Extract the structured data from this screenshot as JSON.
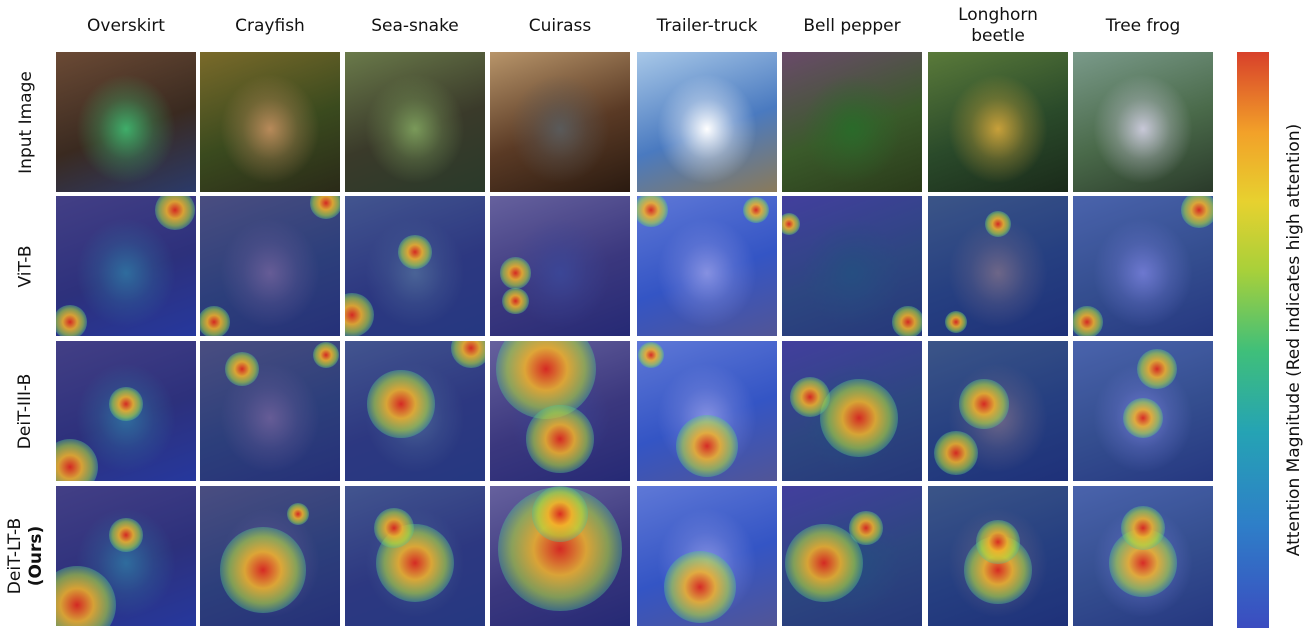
{
  "columns": [
    {
      "label": "Overskirt",
      "scene": {
        "bg": [
          "#3a2a20",
          "#6b4a35",
          "#2b3a6a"
        ],
        "subject": "#3fae6a"
      }
    },
    {
      "label": "Crayfish",
      "scene": {
        "bg": [
          "#3a4a1e",
          "#7a6a2a",
          "#2a2a18"
        ],
        "subject": "#b88a5a"
      }
    },
    {
      "label": "Sea-snake",
      "scene": {
        "bg": [
          "#3a3a2a",
          "#6a7a4a",
          "#2a3a2a"
        ],
        "subject": "#7a9a5a"
      }
    },
    {
      "label": "Cuirass",
      "scene": {
        "bg": [
          "#5a3a25",
          "#b8956a",
          "#2a1a10"
        ],
        "subject": "#5a5a5a"
      }
    },
    {
      "label": "Trailer-truck",
      "scene": {
        "bg": [
          "#4a7ac0",
          "#a8c8e8",
          "#8a7a5a"
        ],
        "subject": "#ffffff"
      }
    },
    {
      "label": "Bell pepper",
      "scene": {
        "bg": [
          "#3a5a2a",
          "#6a4a6a",
          "#2a3a1a"
        ],
        "subject": "#2a6a2a"
      }
    },
    {
      "label": "Longhorn\nbeetle",
      "scene": {
        "bg": [
          "#2a4a2a",
          "#5a7a3a",
          "#1a2a1a"
        ],
        "subject": "#c8a03a"
      }
    },
    {
      "label": "Tree frog",
      "scene": {
        "bg": [
          "#4a6a4a",
          "#7a9a8a",
          "#2a3a2a"
        ],
        "subject": "#c8c8d8"
      }
    }
  ],
  "rows": [
    {
      "label_lines": [
        "Input Image"
      ],
      "bold_lines": [],
      "kind": "input"
    },
    {
      "label_lines": [
        "ViT-B"
      ],
      "bold_lines": [],
      "kind": "attn"
    },
    {
      "label_lines": [
        "DeiT-III-B"
      ],
      "bold_lines": [],
      "kind": "attn"
    },
    {
      "label_lines": [
        "DeiT-LT-B"
      ],
      "bold_lines": [
        "(Ours)"
      ],
      "kind": "attn"
    }
  ],
  "colorbar": {
    "label": "Attention Magnitude (Red indicates high attention)",
    "low_color": "#3b4cc0",
    "high_color": "#d8402a"
  }
}
